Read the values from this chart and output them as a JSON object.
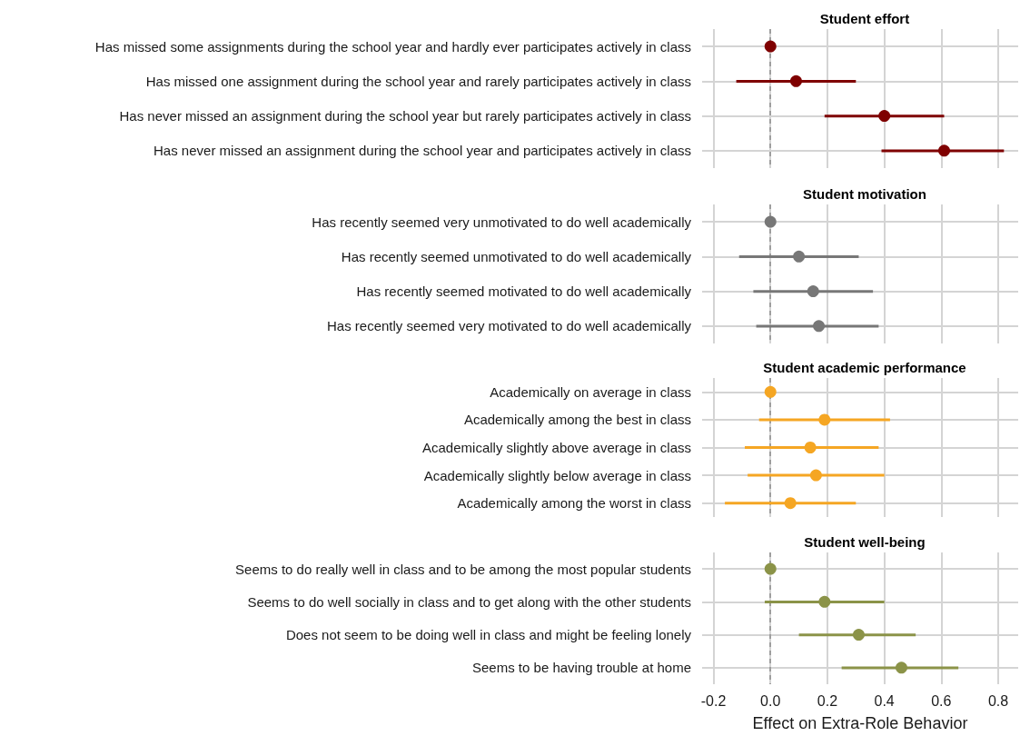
{
  "chart_data": [
    {
      "type": "scatter",
      "orientation": "horizontal",
      "title": "Student effort",
      "categories": [
        "Has missed some assignments during the school year and hardly ever participates actively in class",
        "Has missed one assignment during the school year and rarely participates actively in class",
        "Has never missed an assignment during the school year but rarely participates actively in class",
        "Has never missed an assignment during the school year and participates actively in class"
      ],
      "series": [
        {
          "color": "#7f0000",
          "values": [
            0,
            0.09,
            0.4,
            0.61
          ],
          "errors": [
            null,
            [
              -0.12,
              0.3
            ],
            [
              0.19,
              0.61
            ],
            [
              0.39,
              0.82
            ]
          ]
        }
      ],
      "xlim": [
        -0.24,
        0.87
      ],
      "xticks": [
        -0.2,
        0,
        0.2,
        0.4,
        0.6,
        0.8
      ],
      "tick_labels": "y",
      "grid": true,
      "marker": "circle",
      "ref_lines": [
        {
          "axis": "x",
          "value": 0,
          "label": null,
          "color": "#8c8c8c",
          "line_style": "dashed"
        }
      ]
    },
    {
      "type": "scatter",
      "orientation": "horizontal",
      "title": "Student motivation",
      "categories": [
        "Has recently seemed very unmotivated to do well academically",
        "Has recently seemed unmotivated to do well academically",
        "Has recently seemed motivated to do well academically",
        "Has recently seemed very motivated to do well academically"
      ],
      "series": [
        {
          "color": "#777777",
          "values": [
            0,
            0.1,
            0.15,
            0.17
          ],
          "errors": [
            null,
            [
              -0.11,
              0.31
            ],
            [
              -0.06,
              0.36
            ],
            [
              -0.05,
              0.38
            ]
          ]
        }
      ],
      "xlim": [
        -0.24,
        0.87
      ],
      "xticks": [
        -0.2,
        0,
        0.2,
        0.4,
        0.6,
        0.8
      ],
      "tick_labels": "y",
      "grid": true,
      "marker": "circle",
      "ref_lines": [
        {
          "axis": "x",
          "value": 0,
          "label": null,
          "color": "#8c8c8c",
          "line_style": "dashed"
        }
      ]
    },
    {
      "type": "scatter",
      "orientation": "horizontal",
      "title": "Student academic performance",
      "categories": [
        "Academically on average in class",
        "Academically among the best in class",
        "Academically slightly above average in class",
        "Academically slightly below average in class",
        "Academically among the worst in class"
      ],
      "series": [
        {
          "color": "#f5a623",
          "values": [
            0,
            0.19,
            0.14,
            0.16,
            0.07
          ],
          "errors": [
            null,
            [
              -0.04,
              0.42
            ],
            [
              -0.09,
              0.38
            ],
            [
              -0.08,
              0.4
            ],
            [
              -0.16,
              0.3
            ]
          ]
        }
      ],
      "xlim": [
        -0.24,
        0.87
      ],
      "xticks": [
        -0.2,
        0,
        0.2,
        0.4,
        0.6,
        0.8
      ],
      "tick_labels": "y",
      "grid": true,
      "marker": "circle",
      "ref_lines": [
        {
          "axis": "x",
          "value": 0,
          "label": null,
          "color": "#8c8c8c",
          "line_style": "dashed"
        }
      ]
    },
    {
      "type": "scatter",
      "orientation": "horizontal",
      "title": "Student well-being",
      "xlabel": "Effect on Extra-Role Behavior",
      "categories": [
        "Seems to do really well in class and to be among the most popular students",
        "Seems to do well socially in class and to get along with the other students",
        "Does not seem to be doing well in class and might be feeling lonely",
        "Seems to be having trouble at home"
      ],
      "series": [
        {
          "color": "#8b9348",
          "values": [
            0,
            0.19,
            0.31,
            0.46
          ],
          "errors": [
            null,
            [
              -0.02,
              0.4
            ],
            [
              0.1,
              0.51
            ],
            [
              0.25,
              0.66
            ]
          ]
        }
      ],
      "xlim": [
        -0.24,
        0.87
      ],
      "xticks": [
        -0.2,
        {
          "value": 0,
          "label": "0.0"
        },
        0.2,
        0.4,
        0.6,
        0.8
      ],
      "grid": true,
      "marker": "circle",
      "ref_lines": [
        {
          "axis": "x",
          "value": 0,
          "label": null,
          "color": "#8c8c8c",
          "line_style": "dashed"
        }
      ]
    }
  ]
}
